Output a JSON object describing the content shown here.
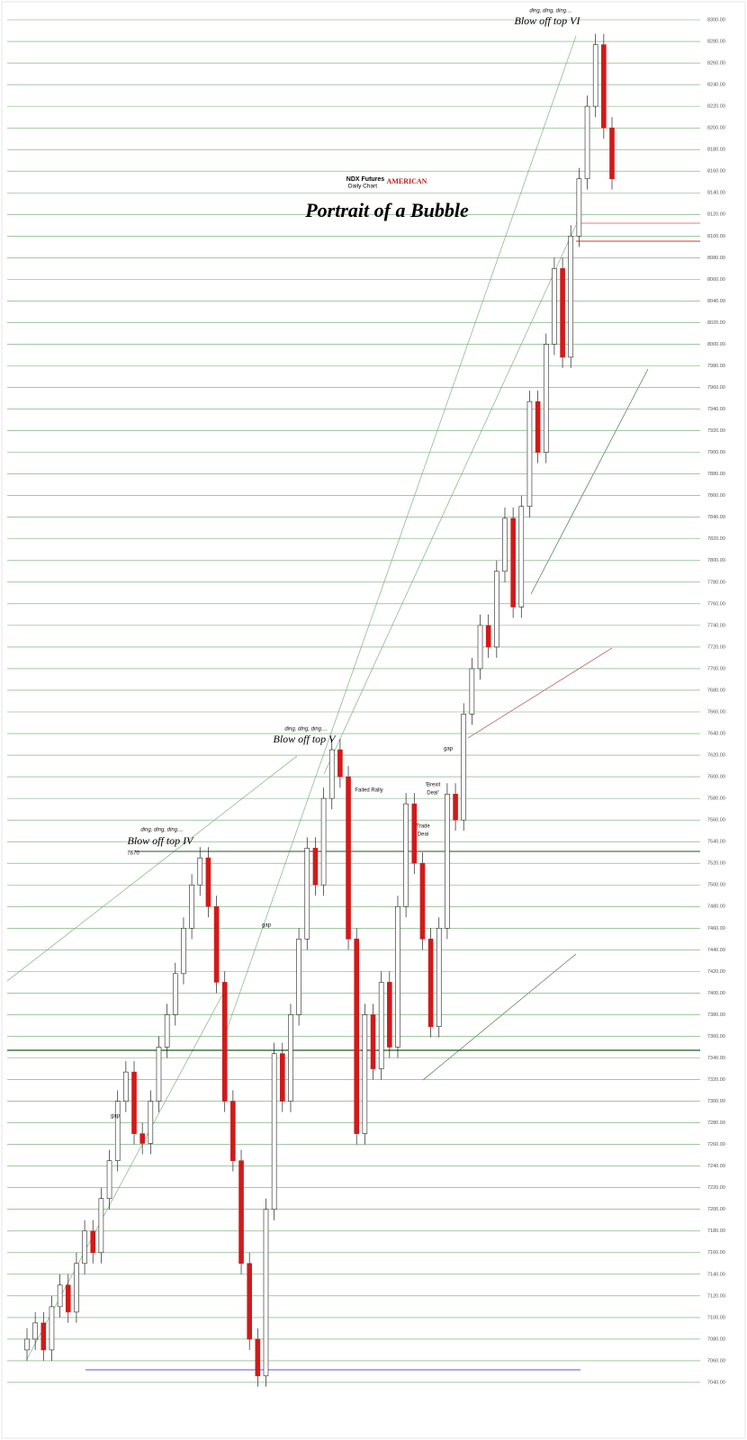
{
  "chart_data": {
    "type": "candlestick",
    "title": "Portrait of a Bubble",
    "subtitle": [
      "NDX Futures",
      "Daily Chart"
    ],
    "logo": "AMERICAN",
    "up_color": "#ffffff",
    "down_color": "#d11a1a",
    "grid": true,
    "grid_color": "#6aa86a",
    "ylim": [
      7030,
      8300
    ],
    "yticks": [
      {
        "value": 7040,
        "label": "7040.00"
      },
      {
        "value": 7060,
        "label": "7060.00"
      },
      {
        "value": 7080,
        "label": "7080.00"
      },
      {
        "value": 7100,
        "label": "7100.00"
      },
      {
        "value": 7120,
        "label": "7120.00"
      },
      {
        "value": 7140,
        "label": "7140.00"
      },
      {
        "value": 7160,
        "label": "7160.00"
      },
      {
        "value": 7180,
        "label": "7180.00"
      },
      {
        "value": 7200,
        "label": "7200.00"
      },
      {
        "value": 7220,
        "label": "7220.00"
      },
      {
        "value": 7240,
        "label": "7240.00"
      },
      {
        "value": 7260,
        "label": "7260.00"
      },
      {
        "value": 7280,
        "label": "7280.00"
      },
      {
        "value": 7300,
        "label": "7300.00"
      },
      {
        "value": 7320,
        "label": "7320.00"
      },
      {
        "value": 7340,
        "label": "7340.00"
      },
      {
        "value": 7360,
        "label": "7360.00"
      },
      {
        "value": 7380,
        "label": "7380.00"
      },
      {
        "value": 7400,
        "label": "7400.00"
      },
      {
        "value": 7420,
        "label": "7420.00"
      },
      {
        "value": 7440,
        "label": "7440.00"
      },
      {
        "value": 7460,
        "label": "7460.00"
      },
      {
        "value": 7480,
        "label": "7480.00"
      },
      {
        "value": 7500,
        "label": "7500.00"
      },
      {
        "value": 7520,
        "label": "7520.00"
      },
      {
        "value": 7540,
        "label": "7540.00"
      },
      {
        "value": 7560,
        "label": "7560.00"
      },
      {
        "value": 7580,
        "label": "7580.00"
      },
      {
        "value": 7600,
        "label": "7600.00"
      },
      {
        "value": 7620,
        "label": "7620.00"
      },
      {
        "value": 7640,
        "label": "7640.00"
      },
      {
        "value": 7660,
        "label": "7660.00"
      },
      {
        "value": 7680,
        "label": "7680.00"
      },
      {
        "value": 7700,
        "label": "7700.00"
      },
      {
        "value": 7720,
        "label": "7720.00"
      },
      {
        "value": 7740,
        "label": "7740.00"
      },
      {
        "value": 7760,
        "label": "7760.00"
      },
      {
        "value": 7780,
        "label": "7780.00"
      },
      {
        "value": 7800,
        "label": "7800.00"
      },
      {
        "value": 7820,
        "label": "7820.00"
      },
      {
        "value": 7840,
        "label": "7840.00"
      },
      {
        "value": 7860,
        "label": "7860.00"
      },
      {
        "value": 7880,
        "label": "7880.00"
      },
      {
        "value": 7900,
        "label": "7900.00"
      },
      {
        "value": 7920,
        "label": "7920.00"
      },
      {
        "value": 7940,
        "label": "7940.00"
      },
      {
        "value": 7960,
        "label": "7960.00"
      },
      {
        "value": 7980,
        "label": "7980.00"
      },
      {
        "value": 8000,
        "label": "8000.00"
      },
      {
        "value": 8020,
        "label": "8020.00"
      },
      {
        "value": 8040,
        "label": "8040.00"
      },
      {
        "value": 8060,
        "label": "8060.00"
      },
      {
        "value": 8080,
        "label": "8080.00"
      },
      {
        "value": 8100,
        "label": "8100.00"
      },
      {
        "value": 8120,
        "label": "8120.00"
      },
      {
        "value": 8140,
        "label": "8140.00"
      },
      {
        "value": 8160,
        "label": "8160.00"
      },
      {
        "value": 8180,
        "label": "8180.00"
      },
      {
        "value": 8200,
        "label": "8200.00"
      },
      {
        "value": 8220,
        "label": "8220.00"
      },
      {
        "value": 8240,
        "label": "8240.00"
      },
      {
        "value": 8260,
        "label": "8260.00"
      },
      {
        "value": 8280,
        "label": "8280.00"
      },
      {
        "value": 8300,
        "label": "8300.00"
      }
    ],
    "open": [
      7070,
      7080,
      7095,
      7070,
      7110,
      7130,
      7105,
      7150,
      7180,
      7160,
      7210,
      7245,
      7300,
      7327,
      7270,
      7261,
      7300,
      7350,
      7380,
      7418,
      7460,
      7500,
      7525,
      7480,
      7410,
      7300,
      7245,
      7150,
      7080,
      7046,
      7200,
      7344,
      7300,
      7380,
      7450,
      7534,
      7500,
      7580,
      7625,
      7600,
      7450,
      7270,
      7380,
      7330,
      7410,
      7350,
      7480,
      7575,
      7520,
      7450,
      7369,
      7460,
      7584,
      7560,
      7658,
      7700,
      7740,
      7720,
      7790,
      7839,
      7757,
      7850,
      7947,
      7900,
      8000,
      8070,
      7988,
      8100,
      8153,
      8220,
      8277,
      8200
    ],
    "high": [
      7090,
      7105,
      7105,
      7120,
      7140,
      7140,
      7160,
      7190,
      7190,
      7220,
      7255,
      7310,
      7337,
      7337,
      7280,
      7310,
      7360,
      7390,
      7428,
      7470,
      7510,
      7535,
      7535,
      7490,
      7420,
      7310,
      7255,
      7160,
      7090,
      7210,
      7354,
      7354,
      7390,
      7460,
      7544,
      7544,
      7590,
      7635,
      7635,
      7610,
      7460,
      7390,
      7390,
      7420,
      7420,
      7490,
      7585,
      7585,
      7530,
      7460,
      7470,
      7594,
      7594,
      7668,
      7710,
      7750,
      7750,
      7800,
      7849,
      7849,
      7860,
      7957,
      7957,
      8010,
      8080,
      8080,
      8110,
      8163,
      8230,
      8287,
      8287,
      8210
    ],
    "low": [
      7060,
      7070,
      7060,
      7060,
      7100,
      7095,
      7095,
      7140,
      7150,
      7150,
      7200,
      7235,
      7290,
      7260,
      7251,
      7251,
      7290,
      7340,
      7370,
      7408,
      7450,
      7490,
      7470,
      7400,
      7290,
      7235,
      7140,
      7070,
      7036,
      7036,
      7190,
      7290,
      7290,
      7370,
      7440,
      7490,
      7490,
      7570,
      7590,
      7440,
      7260,
      7260,
      7320,
      7320,
      7340,
      7340,
      7470,
      7510,
      7440,
      7359,
      7359,
      7450,
      7550,
      7550,
      7648,
      7690,
      7710,
      7710,
      7780,
      7747,
      7747,
      7840,
      7890,
      7890,
      7990,
      7978,
      7978,
      8090,
      8143,
      8210,
      8190,
      8143
    ],
    "close": [
      7080,
      7095,
      7070,
      7110,
      7130,
      7105,
      7150,
      7180,
      7160,
      7210,
      7245,
      7300,
      7327,
      7270,
      7261,
      7300,
      7350,
      7380,
      7418,
      7460,
      7500,
      7525,
      7480,
      7410,
      7300,
      7245,
      7150,
      7080,
      7046,
      7200,
      7344,
      7300,
      7380,
      7450,
      7534,
      7500,
      7580,
      7625,
      7600,
      7450,
      7270,
      7380,
      7330,
      7410,
      7350,
      7480,
      7575,
      7520,
      7450,
      7369,
      7460,
      7584,
      7560,
      7658,
      7700,
      7740,
      7720,
      7790,
      7839,
      7757,
      7850,
      7947,
      7900,
      8000,
      8070,
      7988,
      8100,
      8153,
      8220,
      8277,
      8200,
      8153
    ],
    "annotations": [
      {
        "text": "ding, ding, ding...."
      },
      {
        "text": "Blow off top VI"
      },
      {
        "text": "ding, ding, ding...."
      },
      {
        "text": "Blow off top V"
      },
      {
        "text": "ding, ding, ding...."
      },
      {
        "text": "Blow off top IV"
      },
      {
        "text": "7670"
      },
      {
        "text": "Failed Rally"
      },
      {
        "text": "'Brexit"
      },
      {
        "text": "Deal'"
      },
      {
        "text": "Trade"
      },
      {
        "text": "Deal"
      },
      {
        "text": "gap"
      },
      {
        "text": "gap"
      },
      {
        "text": "gap"
      }
    ]
  }
}
